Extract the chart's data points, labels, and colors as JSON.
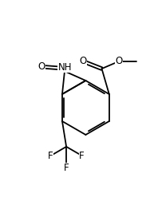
{
  "background_color": "#ffffff",
  "figsize": [
    1.88,
    2.72
  ],
  "dpi": 100,
  "line_width": 1.3,
  "font_size": 8.5,
  "xlim": [
    0.0,
    1.0
  ],
  "ylim": [
    0.0,
    1.0
  ]
}
